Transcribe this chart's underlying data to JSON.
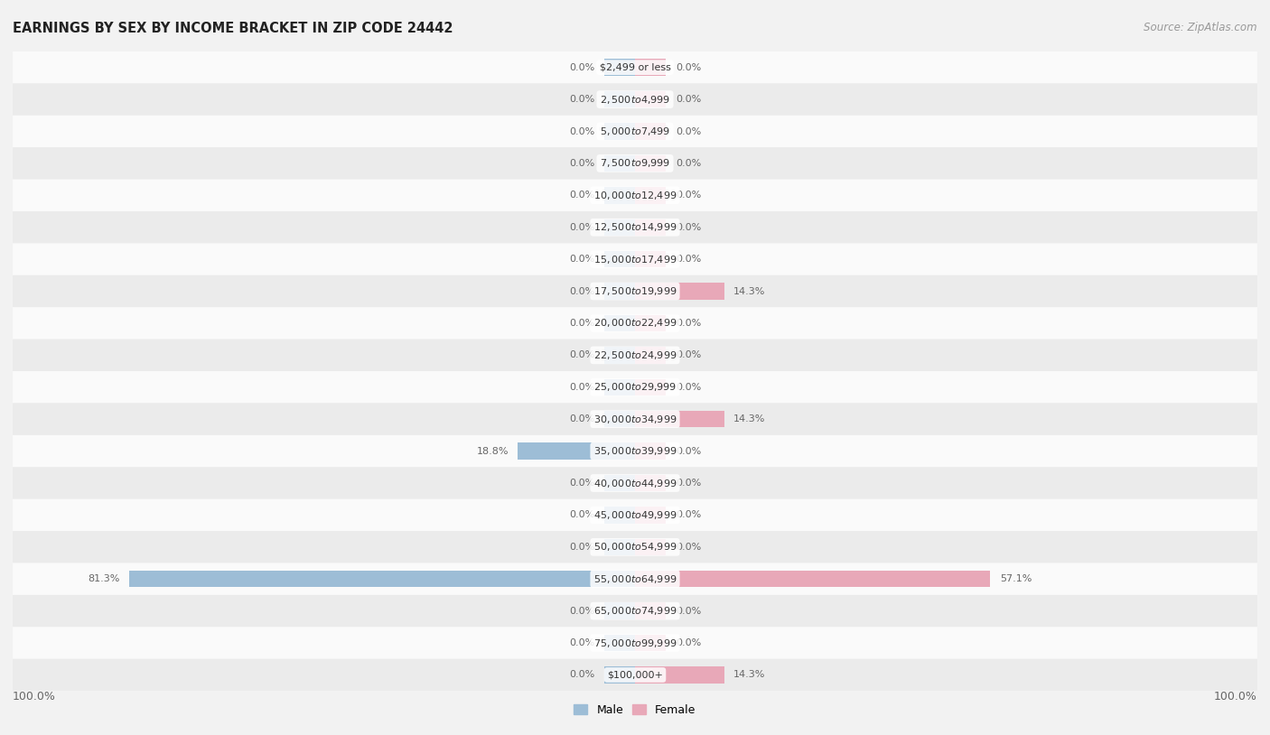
{
  "title": "EARNINGS BY SEX BY INCOME BRACKET IN ZIP CODE 24442",
  "source": "Source: ZipAtlas.com",
  "categories": [
    "$2,499 or less",
    "$2,500 to $4,999",
    "$5,000 to $7,499",
    "$7,500 to $9,999",
    "$10,000 to $12,499",
    "$12,500 to $14,999",
    "$15,000 to $17,499",
    "$17,500 to $19,999",
    "$20,000 to $22,499",
    "$22,500 to $24,999",
    "$25,000 to $29,999",
    "$30,000 to $34,999",
    "$35,000 to $39,999",
    "$40,000 to $44,999",
    "$45,000 to $49,999",
    "$50,000 to $54,999",
    "$55,000 to $64,999",
    "$65,000 to $74,999",
    "$75,000 to $99,999",
    "$100,000+"
  ],
  "male_values": [
    0.0,
    0.0,
    0.0,
    0.0,
    0.0,
    0.0,
    0.0,
    0.0,
    0.0,
    0.0,
    0.0,
    0.0,
    18.8,
    0.0,
    0.0,
    0.0,
    81.3,
    0.0,
    0.0,
    0.0
  ],
  "female_values": [
    0.0,
    0.0,
    0.0,
    0.0,
    0.0,
    0.0,
    0.0,
    14.3,
    0.0,
    0.0,
    0.0,
    14.3,
    0.0,
    0.0,
    0.0,
    0.0,
    57.1,
    0.0,
    0.0,
    14.3
  ],
  "male_color": "#9dbdd6",
  "female_color": "#e8a8b8",
  "male_label": "Male",
  "female_label": "Female",
  "bar_height": 0.52,
  "bg_color": "#f2f2f2",
  "row_color_light": "#fafafa",
  "row_color_dark": "#ebebeb",
  "xlim": 100.0,
  "stub_size": 5.0,
  "label_color": "#666666",
  "title_fontsize": 10.5,
  "source_fontsize": 8.5,
  "value_fontsize": 8.0,
  "cat_fontsize": 8.0,
  "legend_fontsize": 9.0,
  "pill_color": "#ffffff",
  "pill_alpha": 0.85
}
